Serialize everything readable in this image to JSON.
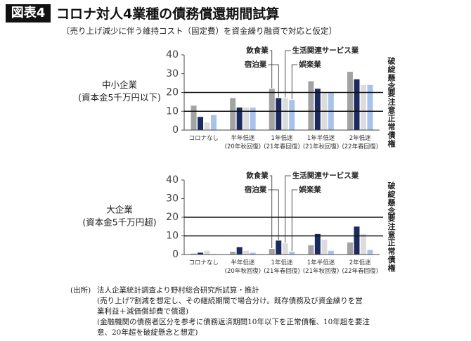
{
  "header": {
    "figure_label": "図表4",
    "title": "コロナ対人4業種の債務償還期間試算",
    "subtitle": "〔売り上げ減少に伴う維持コスト（固定費）を資金繰り融資で対応と仮定〕"
  },
  "chart_data": [
    {
      "type": "bar",
      "title": "中小企業",
      "subtitle": "(資本金5千万円以下)",
      "categories": [
        "コロナなし",
        "半年低迷\n(20年秋回復)",
        "1年低迷\n(21年春回復)",
        "1年半低迷\n(21年秋回復)",
        "2年低迷\n(22年春回復)"
      ],
      "series": [
        {
          "name": "飲食業",
          "color": "#a3a3a3",
          "values": [
            13,
            17,
            22,
            26,
            31
          ]
        },
        {
          "name": "宿泊業",
          "color": "#1c2a5e",
          "values": [
            7,
            12,
            17,
            22,
            27
          ]
        },
        {
          "name": "生活関連サービス業",
          "color": "#dcdcdc",
          "values": [
            4,
            12,
            17,
            20,
            24
          ]
        },
        {
          "name": "娯楽業",
          "color": "#a9c2ec",
          "values": [
            8,
            12,
            16,
            20,
            24
          ]
        }
      ],
      "ylim": [
        0,
        40
      ],
      "yticks": [
        0,
        10,
        20,
        30,
        40
      ],
      "reference_lines": [
        10,
        20
      ],
      "zone_labels": [
        "破綻懸念",
        "要注意",
        "正常債権"
      ]
    },
    {
      "type": "bar",
      "title": "大企業",
      "subtitle": "(資本金5千万円超)",
      "categories": [
        "コロナなし",
        "半年低迷\n(20年秋回復)",
        "1年低迷\n(21年春回復)",
        "1年半低迷\n(21年秋回復)",
        "2年低迷\n(22年春回復)"
      ],
      "series": [
        {
          "name": "飲食業",
          "color": "#a3a3a3",
          "values": [
            0.5,
            1.5,
            3,
            5,
            6.5
          ]
        },
        {
          "name": "宿泊業",
          "color": "#1c2a5e",
          "values": [
            1,
            4,
            7.5,
            11,
            15
          ]
        },
        {
          "name": "生活関連サービス業",
          "color": "#dcdcdc",
          "values": [
            2,
            2,
            6,
            8,
            11
          ]
        },
        {
          "name": "娯楽業",
          "color": "#a9c2ec",
          "values": [
            0.3,
            1,
            1.5,
            2,
            2.5
          ]
        }
      ],
      "ylim": [
        0,
        40
      ],
      "yticks": [
        0,
        10,
        20,
        30,
        40
      ],
      "reference_lines": [
        10,
        20
      ],
      "zone_labels": [
        "破綻懸念",
        "要注意",
        "正常債権"
      ]
    }
  ],
  "notes": {
    "source": "(出所)",
    "lines": [
      "法人企業統計調査より野村総合研究所試算・推計",
      "(売り上げ7割減を想定し、その継続期間で場合分け。既存債務及び資金繰りを営",
      "業利益＋減価償却費で償還)",
      "(金融機関の債務者区分を参考に債務返済期間10年以下を正常債権、10年超を要注",
      "意、20年超を破綻懸念と想定)"
    ]
  }
}
